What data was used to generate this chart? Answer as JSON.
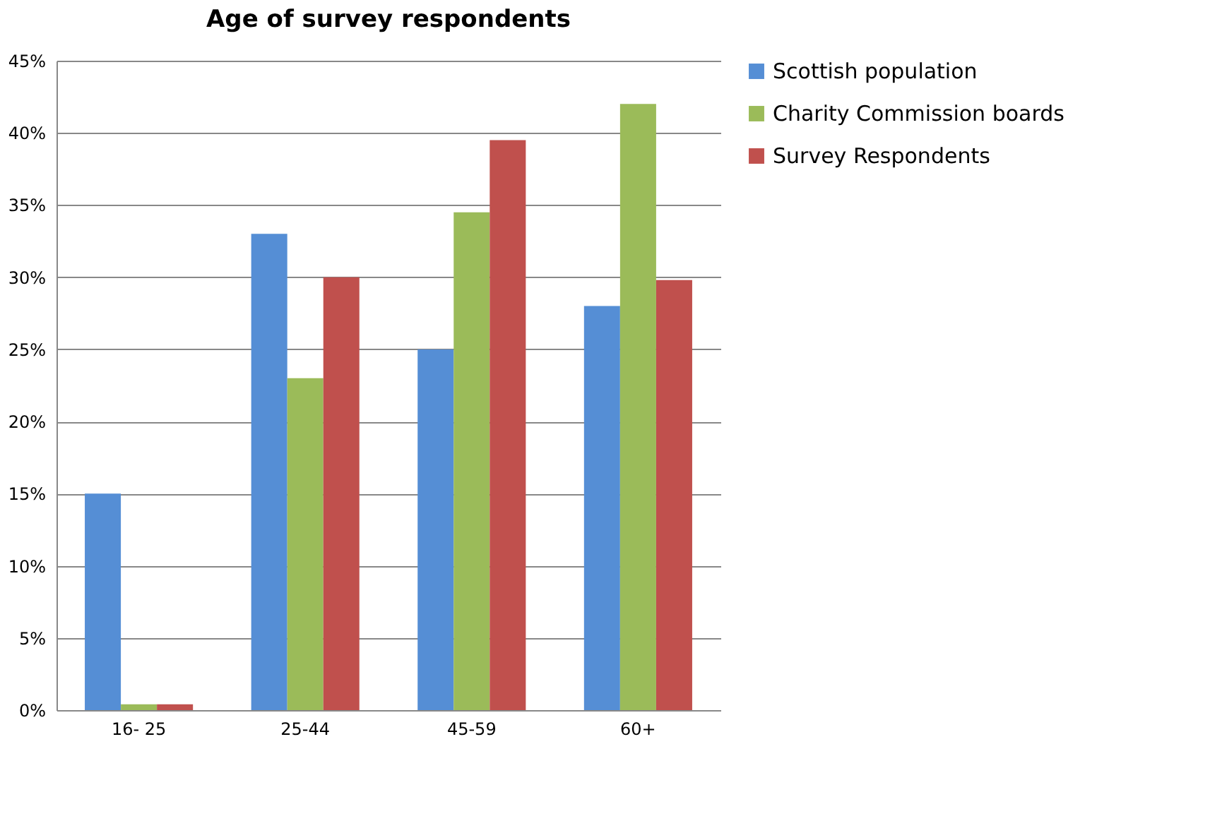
{
  "chart_data": {
    "type": "bar",
    "title": "Age of survey respondents",
    "categories": [
      "16-  25",
      "25-44",
      "45-59",
      "60+"
    ],
    "series": [
      {
        "name": "Scottish population",
        "color": "#558ed5",
        "values": [
          15,
          33,
          25,
          28
        ]
      },
      {
        "name": "Charity Commission boards",
        "color": "#9bbb59",
        "values": [
          0.4,
          23,
          34.5,
          42
        ]
      },
      {
        "name": "Survey Respondents",
        "color": "#c0504d",
        "values": [
          0.4,
          30,
          39.5,
          29.8
        ]
      }
    ],
    "ylim": [
      0,
      45
    ],
    "yticks": [
      {
        "value": 0,
        "label": "0%"
      },
      {
        "value": 5,
        "label": "5%"
      },
      {
        "value": 10,
        "label": "10%"
      },
      {
        "value": 15,
        "label": "15%"
      },
      {
        "value": 20,
        "label": "20%"
      },
      {
        "value": 25,
        "label": "25%"
      },
      {
        "value": 30,
        "label": "30%"
      },
      {
        "value": 35,
        "label": "35%"
      },
      {
        "value": 40,
        "label": "40%"
      },
      {
        "value": 45,
        "label": "45%"
      }
    ],
    "grid": "y",
    "legend": "right"
  }
}
